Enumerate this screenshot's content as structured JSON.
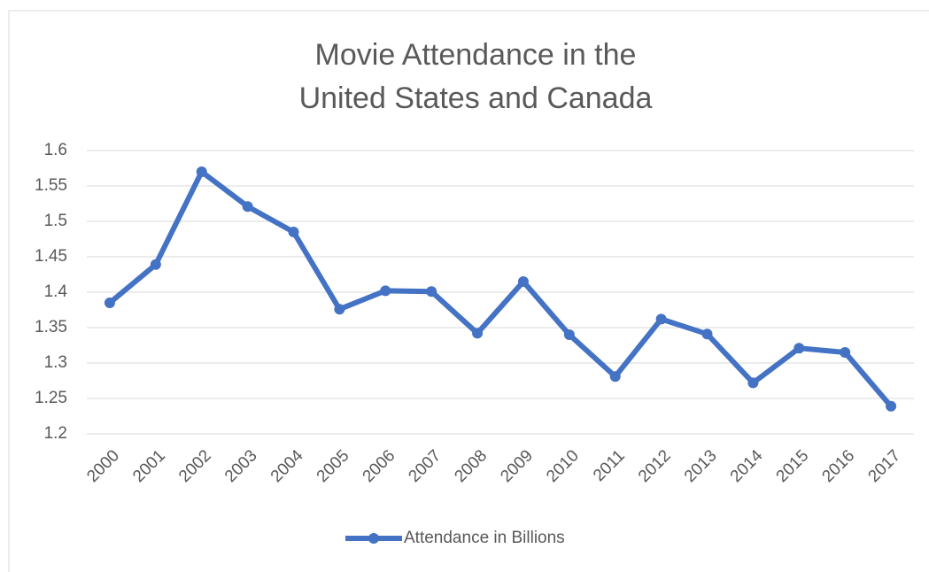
{
  "chart_data": {
    "type": "line",
    "title": [
      "Movie Attendance in the",
      "United States and Canada"
    ],
    "categories": [
      "2000",
      "2001",
      "2002",
      "2003",
      "2004",
      "2005",
      "2006",
      "2007",
      "2008",
      "2009",
      "2010",
      "2011",
      "2012",
      "2013",
      "2014",
      "2015",
      "2016",
      "2017"
    ],
    "series": [
      {
        "name": "Attendance in Billions",
        "color": "#4472c4",
        "values": [
          1.385,
          1.439,
          1.57,
          1.521,
          1.485,
          1.376,
          1.402,
          1.401,
          1.342,
          1.415,
          1.34,
          1.281,
          1.362,
          1.341,
          1.272,
          1.321,
          1.315,
          1.239
        ]
      }
    ],
    "ylim": [
      1.2,
      1.6
    ],
    "yticks": [
      1.2,
      1.25,
      1.3,
      1.35,
      1.4,
      1.45,
      1.5,
      1.55,
      1.6
    ],
    "grid": true,
    "legend": "bottom"
  }
}
